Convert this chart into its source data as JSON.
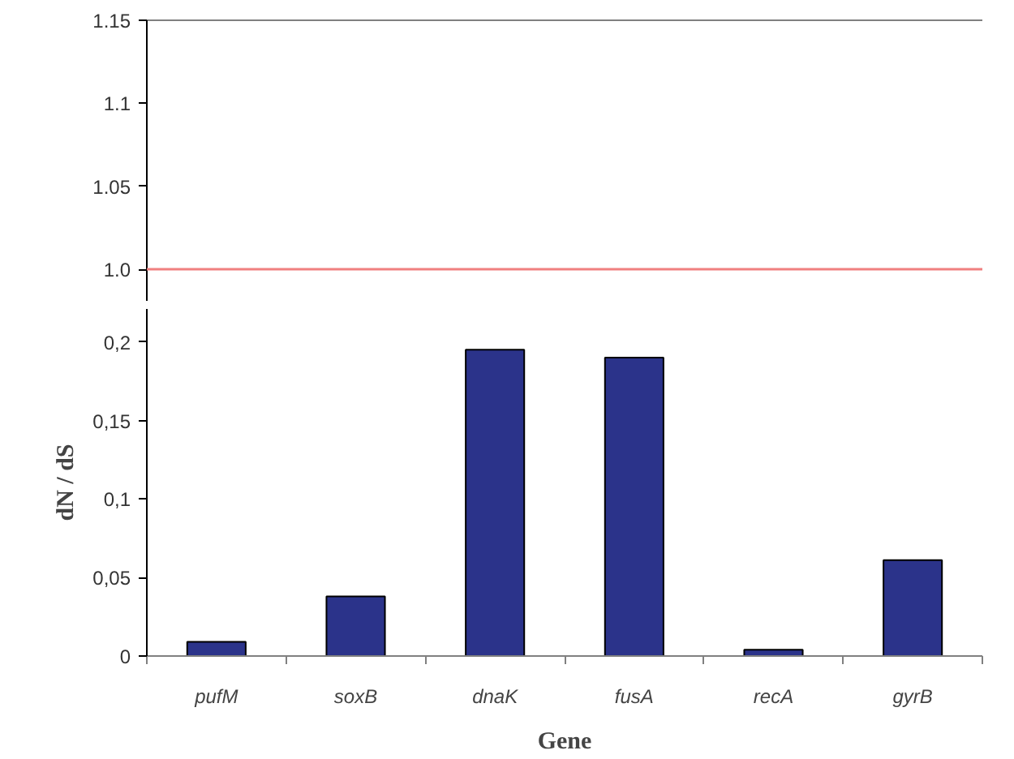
{
  "chart_data": [
    {
      "type": "bar",
      "categories": [
        null,
        null,
        null,
        null,
        null,
        null
      ],
      "values": [
        null,
        null,
        null,
        null,
        null,
        null
      ],
      "ylim": [
        0.981,
        1.15
      ],
      "yticks": [
        {
          "value": 1,
          "label": "1.0"
        },
        1.05,
        1.1,
        1.15
      ],
      "tick_labels": "y",
      "ref_lines": [
        {
          "axis": "y",
          "value": 1,
          "color": "#f08080"
        }
      ]
    },
    {
      "type": "bar",
      "categories": [
        "pufM",
        "soxB",
        "dnaK",
        "fusA",
        "recA",
        "gyrB"
      ],
      "values": [
        0.009,
        0.038,
        0.195,
        0.19,
        0.004,
        0.061
      ],
      "color": "#2b338a",
      "ylim": [
        0,
        0.221
      ],
      "yticks": [
        0,
        {
          "value": 0.05,
          "label": "0,05"
        },
        {
          "value": 0.1,
          "label": "0,1"
        },
        {
          "value": 0.15,
          "label": "0,15"
        },
        {
          "value": 0.2,
          "label": "0,2"
        }
      ],
      "xlabel": "Gene",
      "ylabel": "dN / dS"
    }
  ]
}
